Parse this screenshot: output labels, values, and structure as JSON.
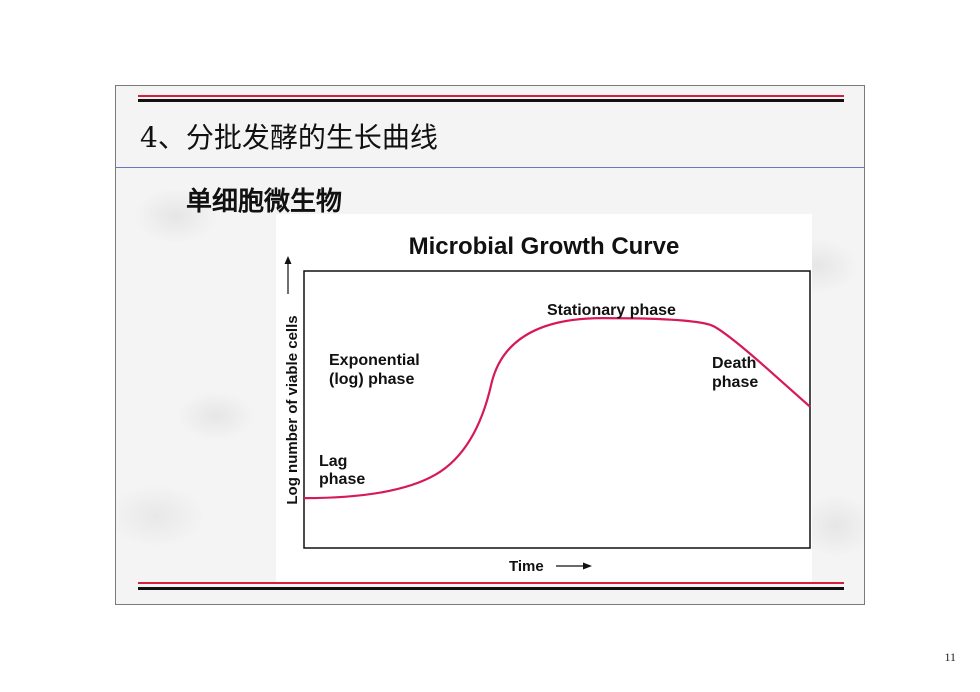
{
  "slide": {
    "title": "4、分批发酵的生长曲线",
    "subtitle": "单细胞微生物"
  },
  "chart_data": {
    "type": "line",
    "title": "Microbial Growth Curve",
    "xlabel": "Time",
    "ylabel": "Log number of viable cells",
    "annotations": [
      {
        "id": "lag",
        "lines": [
          "Lag",
          "phase"
        ]
      },
      {
        "id": "exponential",
        "lines": [
          "Exponential",
          "(log) phase"
        ]
      },
      {
        "id": "stationary",
        "lines": [
          "Stationary phase"
        ]
      },
      {
        "id": "death",
        "lines": [
          "Death",
          "phase"
        ]
      }
    ],
    "series": [
      {
        "x": [
          0,
          0.18,
          0.34,
          0.4,
          0.78,
          0.84,
          1.0
        ],
        "y": [
          0.18,
          0.18,
          0.35,
          0.83,
          0.83,
          0.77,
          0.51
        ]
      }
    ],
    "xlim": [
      0,
      1
    ],
    "ylim": [
      0,
      1
    ],
    "line_color": "#d6195a",
    "grid": false,
    "legend": "none"
  },
  "page_number": "11"
}
